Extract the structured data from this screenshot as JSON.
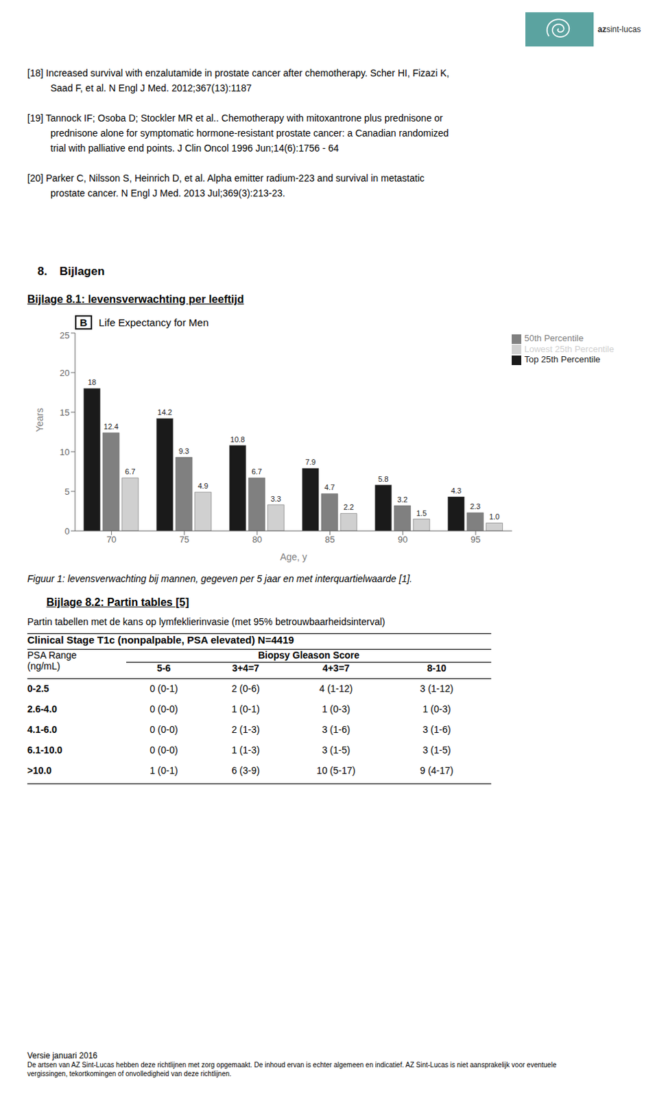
{
  "page_bg": "#ffffff",
  "logo": {
    "color": "#5ba3a0",
    "texts": [
      "az",
      "sint-lucas"
    ]
  },
  "references": [
    [
      "[18] Increased survival with enzalutamide in prostate cancer after chemotherapy. Scher HI, Fizazi K,",
      "Saad F, et al. N Engl J Med. 2012;367(13):1187"
    ],
    [
      "[19] Tannock IF; Osoba D; Stockler MR et al.. Chemotherapy with mitoxantrone plus prednisone or",
      "prednisone alone for symptomatic hormone-resistant prostate cancer: a Canadian randomized",
      "trial with palliative end points. J Clin Oncol 1996 Jun;14(6):1756 - 64"
    ],
    [
      "[20] Parker C, Nilsson S, Heinrich D, et al. Alpha emitter radium-223 and survival in metastatic",
      "prostate cancer. N Engl J Med. 2013 Jul;369(3):213-23."
    ]
  ],
  "section": {
    "number": "8.",
    "title": "Bijlagen"
  },
  "subsection_title": "Bijlage 8.1: levensverwachting per leeftijd",
  "chart_data": {
    "type": "bar",
    "title": "Life Expectancy for Men",
    "annotations": [
      "B"
    ],
    "xlabel": "Age, y",
    "ylabel": "Years",
    "categories": [
      "70",
      "75",
      "80",
      "85",
      "90",
      "95"
    ],
    "series": [
      {
        "name": "Top 25th Percentile",
        "color": "#1a1a1a",
        "values": [
          18,
          14.2,
          10.8,
          7.9,
          5.8,
          4.3
        ]
      },
      {
        "name": "50th Percentile",
        "color": "#808080",
        "values": [
          12.4,
          9.3,
          6.7,
          4.7,
          3.2,
          2.3
        ]
      },
      {
        "name": "Lowest 25th Percentile",
        "color": "#d0d0d0",
        "values": [
          6.7,
          4.9,
          3.3,
          2.2,
          1.5,
          1.0
        ],
        "value_labels": [
          "6.7",
          "4.9",
          "3.3",
          "2.2",
          "1.5",
          "1.0"
        ]
      }
    ],
    "ylim": [
      0,
      25
    ],
    "yticks": [
      0,
      5,
      10,
      15,
      20,
      25
    ],
    "grid": false,
    "legend": "upper right",
    "data_labels": true
  },
  "figure_caption": "Figuur 1: levensverwachting bij mannen, gegeven per 5 jaar en met interquartielwaarde [1].",
  "bijlage82_title": "Bijlage 8.2: Partin tables [5]",
  "partin_intro": "Partin tabellen met de kans op lymfeklierinvasie (met 95% betrouwbaarheidsinterval)",
  "table": {
    "header": "Clinical Stage T1c (nonpalpable, PSA elevated) N=4419",
    "psa_label": "PSA Range",
    "ngml_label": "(ng/mL)",
    "biopsy_label": "Biopsy Gleason Score",
    "col_headers": [
      "5-6",
      "3+4=7",
      "4+3=7",
      "8-10"
    ],
    "row_labels": [
      "0-2.5",
      "2.6-4.0",
      "4.1-6.0",
      "6.1-10.0",
      ">10.0"
    ],
    "rows": [
      [
        "0 (0-1)",
        "2 (0-6)",
        "4 (1-12)",
        "3 (1-12)"
      ],
      [
        "0 (0-0)",
        "1 (0-1)",
        "1 (0-3)",
        "1 (0-3)"
      ],
      [
        "0 (0-0)",
        "2 (1-3)",
        "3 (1-6)",
        "3 (1-6)"
      ],
      [
        "0 (0-0)",
        "1 (1-3)",
        "3 (1-5)",
        "3 (1-5)"
      ],
      [
        "1 (0-1)",
        "6 (3-9)",
        "10 (5-17)",
        "9 (4-17)"
      ]
    ]
  },
  "footer": {
    "version": "Versie januari 2016",
    "lines": [
      "De artsen van AZ Sint-Lucas hebben deze richtlijnen met zorg opgemaakt. De inhoud ervan is echter algemeen en indicatief. AZ Sint-Lucas is niet aansprakelijk voor eventuele",
      "vergissingen, tekortkomingen of onvolledigheid van deze richtlijnen."
    ]
  }
}
